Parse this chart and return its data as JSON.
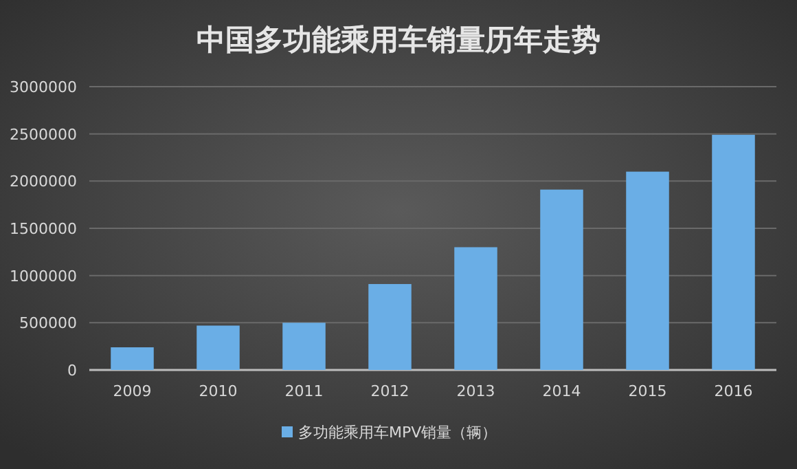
{
  "chart_data": {
    "type": "bar",
    "title": "中国多功能乘用车销量历年走势",
    "categories": [
      "2009",
      "2010",
      "2011",
      "2012",
      "2013",
      "2014",
      "2015",
      "2016"
    ],
    "series": [
      {
        "name": "多功能乘用车MPV销量（辆）",
        "color": "#6aaee6",
        "values": [
          240000,
          470000,
          500000,
          910000,
          1300000,
          1910000,
          2100000,
          2490000
        ]
      }
    ],
    "ylim": [
      0,
      3000000
    ],
    "yticks": [
      0,
      500000,
      1000000,
      1500000,
      2000000,
      2500000,
      3000000
    ],
    "grid": "y",
    "legend": "bottom"
  }
}
